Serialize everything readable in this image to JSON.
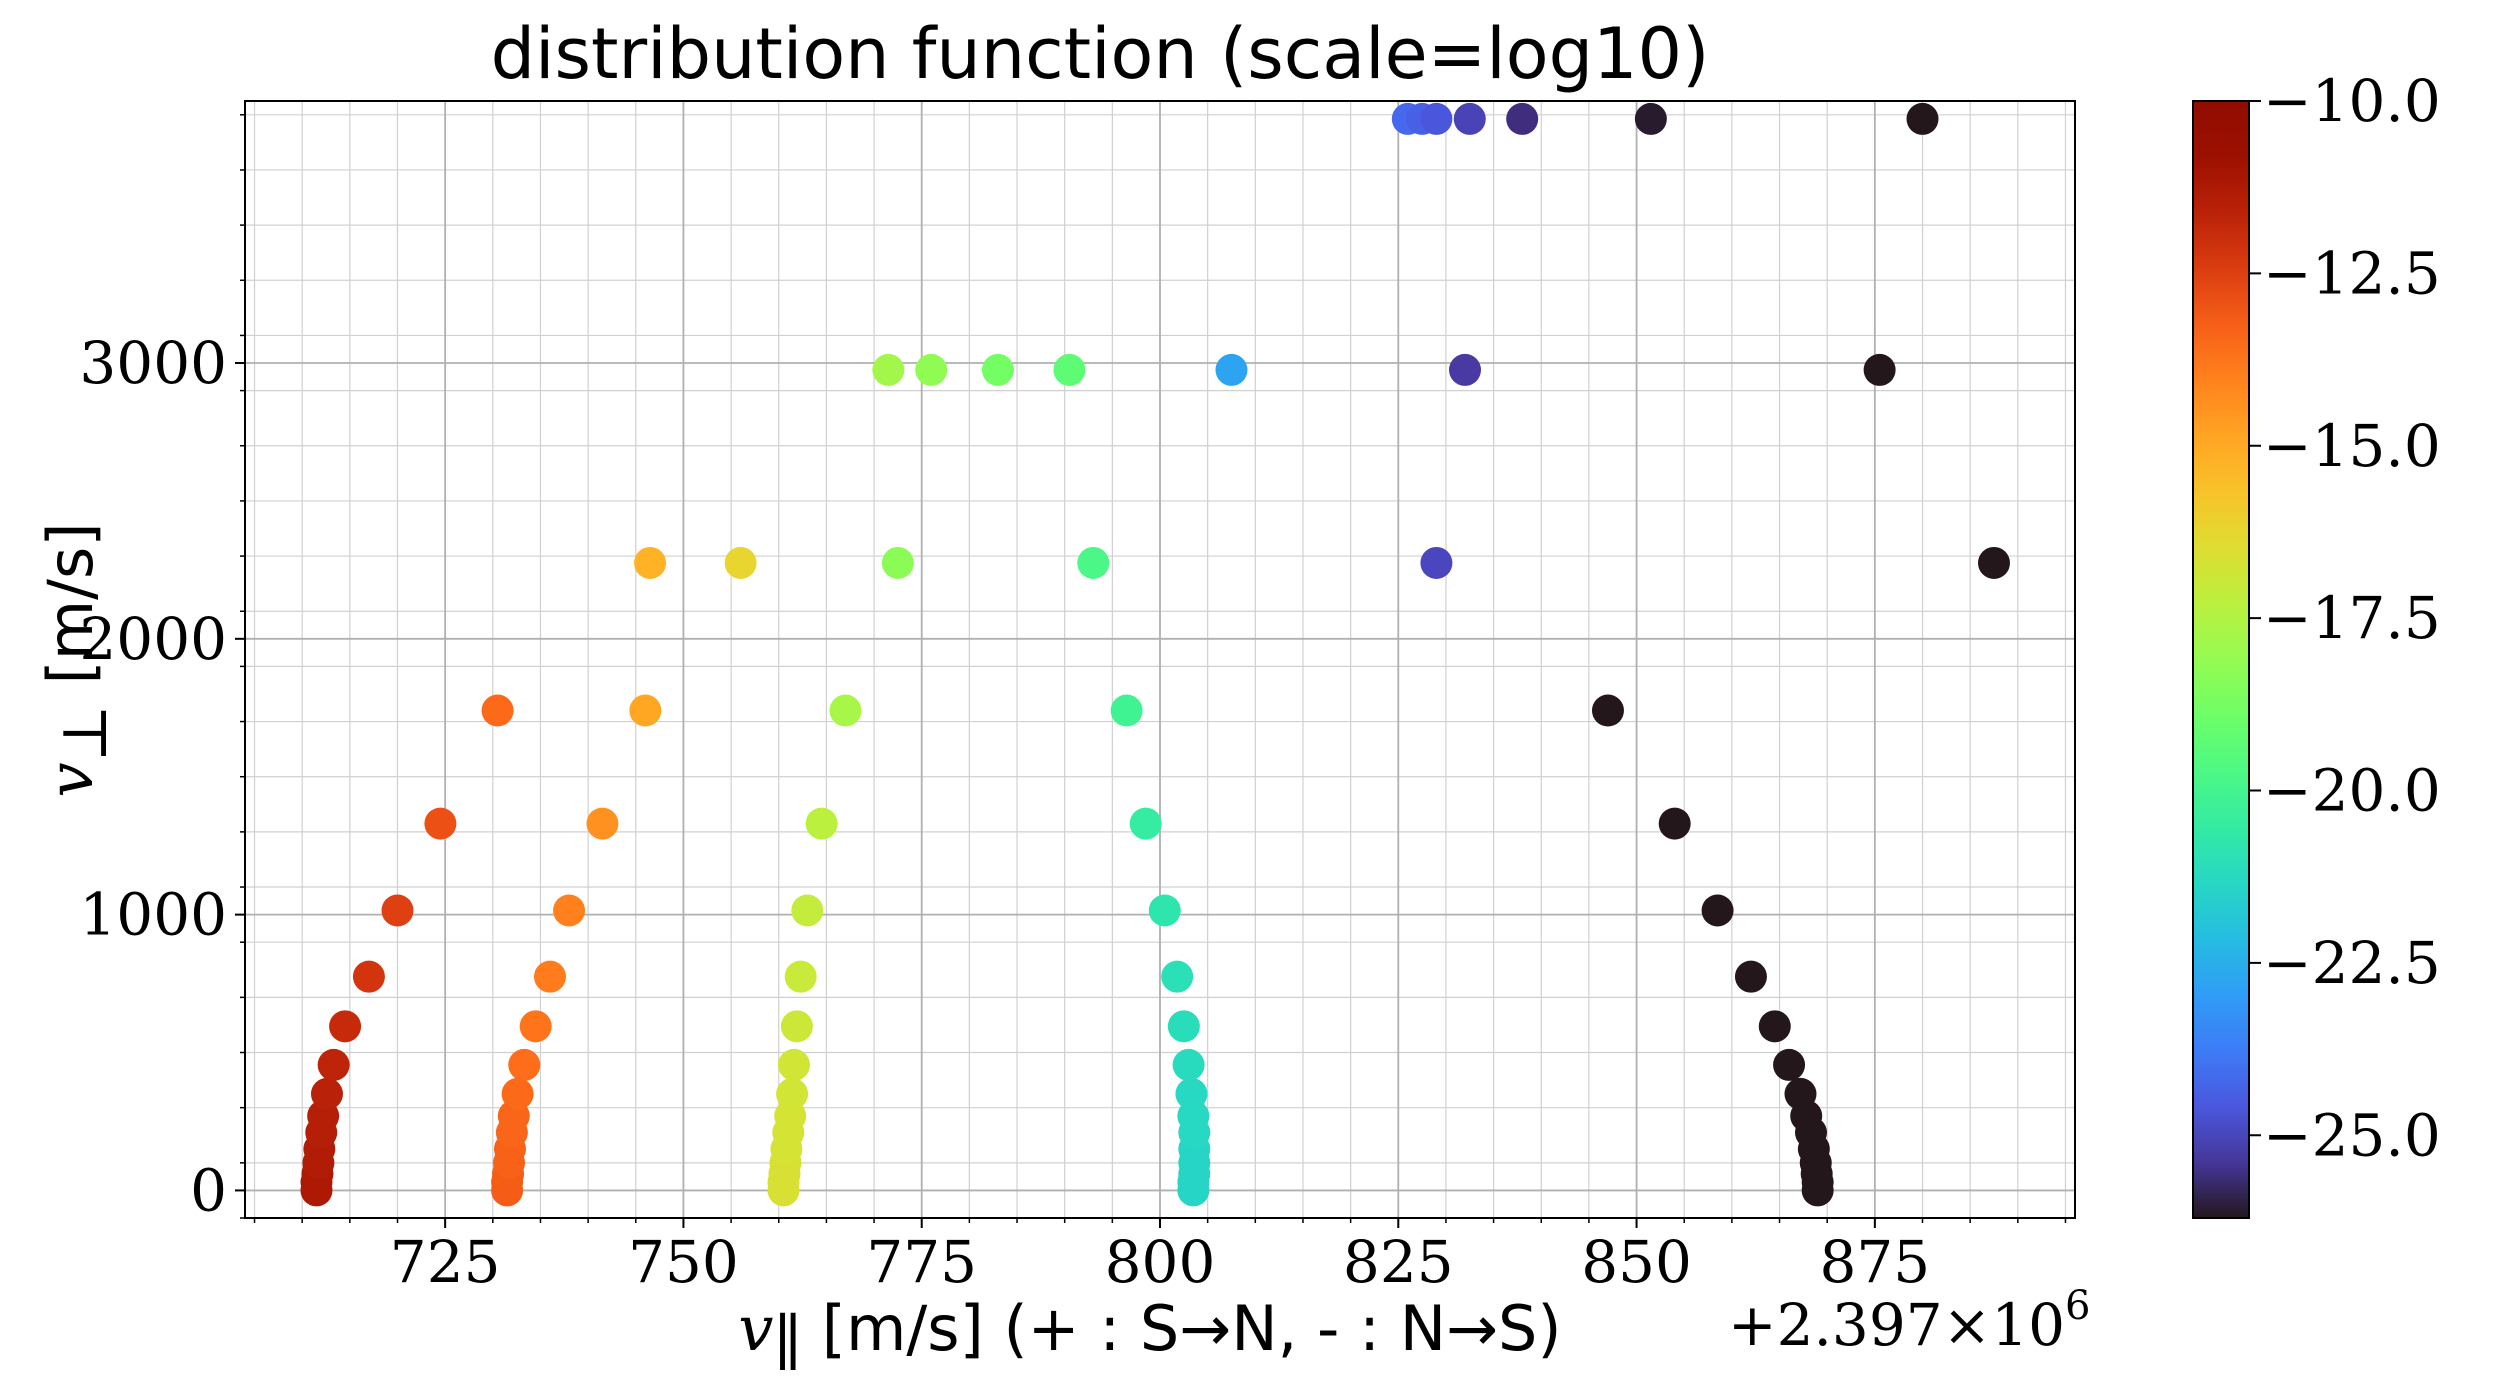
{
  "chart_data": {
    "type": "scatter",
    "title": "distribution function (scale=log10)",
    "xlabel": "v_∥ [m/s] (+ : S→N, - : N→S)",
    "xlabel_parts": {
      "var": "v",
      "sub": "∥",
      "rest": " [m/s] (+ : S→N, - : N→S)"
    },
    "ylabel_parts": {
      "var": "v",
      "sub": "⊥",
      "rest": " [m/s]"
    },
    "x_offset_text": "+2.397×10",
    "x_offset_exponent": "6",
    "x_offset_value": 2397000,
    "xlim": [
      704,
      896
    ],
    "ylim": [
      -100,
      3950
    ],
    "x_ticks": [
      725,
      750,
      775,
      800,
      825,
      850,
      875
    ],
    "x_tick_labels": [
      "725",
      "750",
      "775",
      "800",
      "825",
      "850",
      "875"
    ],
    "y_ticks": [
      0,
      1000,
      2000,
      3000
    ],
    "y_tick_labels": [
      "0",
      "1000",
      "2000",
      "3000"
    ],
    "grid": true,
    "colormap": "turbo",
    "color_scale": "log10",
    "color_range": [
      -26.2,
      -10
    ],
    "colorbar_ticks": [
      -10,
      -12.5,
      -15,
      -17.5,
      -20,
      -22.5,
      -25
    ],
    "colorbar_tick_labels": [
      "−10.0",
      "−12.5",
      "−15.0",
      "−17.5",
      "−20.0",
      "−22.5",
      "−25.0"
    ],
    "points": [
      {
        "x": 711.5,
        "y": 0,
        "c": -11.3
      },
      {
        "x": 711.5,
        "y": 30,
        "c": -11.3
      },
      {
        "x": 711.6,
        "y": 60,
        "c": -11.3
      },
      {
        "x": 711.7,
        "y": 100,
        "c": -11.4
      },
      {
        "x": 711.8,
        "y": 150,
        "c": -11.4
      },
      {
        "x": 712.0,
        "y": 210,
        "c": -11.5
      },
      {
        "x": 712.2,
        "y": 270,
        "c": -11.5
      },
      {
        "x": 712.6,
        "y": 350,
        "c": -11.6
      },
      {
        "x": 713.3,
        "y": 455,
        "c": -11.7
      },
      {
        "x": 714.5,
        "y": 595,
        "c": -11.9
      },
      {
        "x": 717.0,
        "y": 775,
        "c": -12.2
      },
      {
        "x": 720.0,
        "y": 1015,
        "c": -12.5
      },
      {
        "x": 724.5,
        "y": 1330,
        "c": -12.9
      },
      {
        "x": 730.5,
        "y": 1740,
        "c": -13.5
      },
      {
        "x": 731.5,
        "y": 0,
        "c": -13.2
      },
      {
        "x": 731.5,
        "y": 30,
        "c": -13.2
      },
      {
        "x": 731.6,
        "y": 60,
        "c": -13.2
      },
      {
        "x": 731.7,
        "y": 100,
        "c": -13.3
      },
      {
        "x": 731.8,
        "y": 150,
        "c": -13.3
      },
      {
        "x": 732.0,
        "y": 210,
        "c": -13.4
      },
      {
        "x": 732.2,
        "y": 270,
        "c": -13.4
      },
      {
        "x": 732.6,
        "y": 350,
        "c": -13.5
      },
      {
        "x": 733.3,
        "y": 455,
        "c": -13.6
      },
      {
        "x": 734.5,
        "y": 595,
        "c": -13.7
      },
      {
        "x": 736.0,
        "y": 775,
        "c": -13.9
      },
      {
        "x": 738.0,
        "y": 1015,
        "c": -14.0
      },
      {
        "x": 741.5,
        "y": 1330,
        "c": -14.4
      },
      {
        "x": 746.0,
        "y": 1740,
        "c": -14.9
      },
      {
        "x": 746.5,
        "y": 2275,
        "c": -15.2
      },
      {
        "x": 760.5,
        "y": 0,
        "c": -16.6
      },
      {
        "x": 760.5,
        "y": 30,
        "c": -16.6
      },
      {
        "x": 760.6,
        "y": 60,
        "c": -16.6
      },
      {
        "x": 760.7,
        "y": 100,
        "c": -16.6
      },
      {
        "x": 760.8,
        "y": 150,
        "c": -16.7
      },
      {
        "x": 761.0,
        "y": 210,
        "c": -16.7
      },
      {
        "x": 761.2,
        "y": 270,
        "c": -16.7
      },
      {
        "x": 761.4,
        "y": 350,
        "c": -16.8
      },
      {
        "x": 761.6,
        "y": 455,
        "c": -16.8
      },
      {
        "x": 761.9,
        "y": 595,
        "c": -16.9
      },
      {
        "x": 762.3,
        "y": 775,
        "c": -17.0
      },
      {
        "x": 763.0,
        "y": 1015,
        "c": -17.1
      },
      {
        "x": 764.5,
        "y": 1330,
        "c": -17.3
      },
      {
        "x": 767.0,
        "y": 1740,
        "c": -17.7
      },
      {
        "x": 772.5,
        "y": 2275,
        "c": -18.3
      },
      {
        "x": 756.0,
        "y": 2275,
        "c": -16.2
      },
      {
        "x": 803.5,
        "y": 0,
        "c": -21.4
      },
      {
        "x": 803.5,
        "y": 30,
        "c": -21.4
      },
      {
        "x": 803.6,
        "y": 60,
        "c": -21.4
      },
      {
        "x": 803.6,
        "y": 100,
        "c": -21.4
      },
      {
        "x": 803.6,
        "y": 150,
        "c": -21.4
      },
      {
        "x": 803.6,
        "y": 210,
        "c": -21.3
      },
      {
        "x": 803.5,
        "y": 270,
        "c": -21.3
      },
      {
        "x": 803.3,
        "y": 350,
        "c": -21.3
      },
      {
        "x": 803.0,
        "y": 455,
        "c": -21.2
      },
      {
        "x": 802.5,
        "y": 595,
        "c": -21.1
      },
      {
        "x": 801.8,
        "y": 775,
        "c": -21.0
      },
      {
        "x": 800.5,
        "y": 1015,
        "c": -20.8
      },
      {
        "x": 798.5,
        "y": 1330,
        "c": -20.5
      },
      {
        "x": 796.5,
        "y": 1740,
        "c": -20.1
      },
      {
        "x": 793.0,
        "y": 2275,
        "c": -19.8
      },
      {
        "x": 790.5,
        "y": 2975,
        "c": -19.3
      },
      {
        "x": 771.5,
        "y": 2975,
        "c": -17.8
      },
      {
        "x": 776.0,
        "y": 2975,
        "c": -18.2
      },
      {
        "x": 783.0,
        "y": 2975,
        "c": -18.8
      },
      {
        "x": 807.5,
        "y": 2975,
        "c": -22.8
      },
      {
        "x": 832.0,
        "y": 2975,
        "c": -25.3
      },
      {
        "x": 829.0,
        "y": 2275,
        "c": -25.0
      },
      {
        "x": 826.0,
        "y": 3885,
        "c": -24.2
      },
      {
        "x": 827.5,
        "y": 3885,
        "c": -24.4
      },
      {
        "x": 829.0,
        "y": 3885,
        "c": -24.6
      },
      {
        "x": 832.5,
        "y": 3885,
        "c": -25.1
      },
      {
        "x": 838.0,
        "y": 3885,
        "c": -25.6
      },
      {
        "x": 851.5,
        "y": 3885,
        "c": -26.1
      },
      {
        "x": 880.0,
        "y": 3885,
        "c": -26.2
      },
      {
        "x": 875.5,
        "y": 2975,
        "c": -26.2
      },
      {
        "x": 887.5,
        "y": 2275,
        "c": -26.2
      },
      {
        "x": 869.0,
        "y": 0,
        "c": -26.2
      },
      {
        "x": 869.0,
        "y": 30,
        "c": -26.2
      },
      {
        "x": 868.9,
        "y": 60,
        "c": -26.2
      },
      {
        "x": 868.8,
        "y": 100,
        "c": -26.2
      },
      {
        "x": 868.6,
        "y": 150,
        "c": -26.2
      },
      {
        "x": 868.3,
        "y": 210,
        "c": -26.2
      },
      {
        "x": 867.8,
        "y": 270,
        "c": -26.2
      },
      {
        "x": 867.2,
        "y": 350,
        "c": -26.2
      },
      {
        "x": 866.0,
        "y": 455,
        "c": -26.2
      },
      {
        "x": 864.5,
        "y": 595,
        "c": -26.2
      },
      {
        "x": 862.0,
        "y": 775,
        "c": -26.2
      },
      {
        "x": 858.5,
        "y": 1015,
        "c": -26.2
      },
      {
        "x": 854.0,
        "y": 1330,
        "c": -26.2
      },
      {
        "x": 847.0,
        "y": 1740,
        "c": -26.2
      }
    ]
  }
}
